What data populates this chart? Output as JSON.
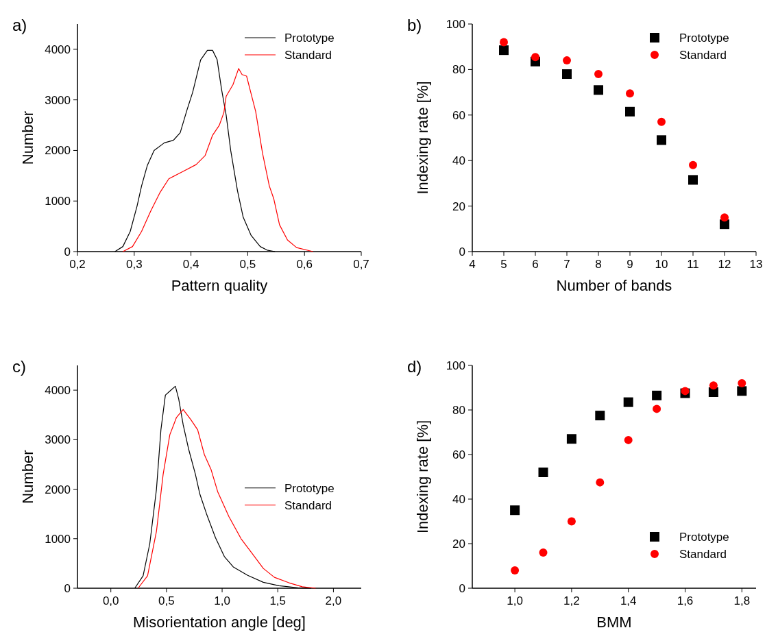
{
  "chart_data": [
    {
      "type": "line",
      "title": "a)",
      "xlabel": "Pattern quality",
      "ylabel": "Number",
      "xlim": [
        0.2,
        0.7
      ],
      "xticks": [
        {
          "value": 0.2,
          "label": "0,2"
        },
        {
          "value": 0.3,
          "label": "0,3"
        },
        {
          "value": 0.4,
          "label": "0,4"
        },
        {
          "value": 0.5,
          "label": "0,5"
        },
        {
          "value": 0.6,
          "label": "0,6"
        },
        {
          "value": 0.7,
          "label": "0,7"
        }
      ],
      "ylim": [
        0,
        4500
      ],
      "yticks": [
        0,
        1000,
        2000,
        3000,
        4000
      ],
      "legend": "top right",
      "grid": false,
      "series": [
        {
          "name": "Prototype",
          "color": "#000000",
          "x": [
            0.266,
            0.28,
            0.293,
            0.305,
            0.313,
            0.323,
            0.335,
            0.353,
            0.369,
            0.381,
            0.393,
            0.403,
            0.417,
            0.429,
            0.438,
            0.446,
            0.454,
            0.462,
            0.47,
            0.482,
            0.492,
            0.506,
            0.522,
            0.534,
            0.548
          ],
          "values": [
            0,
            100,
            400,
            900,
            1300,
            1700,
            2000,
            2150,
            2200,
            2350,
            2800,
            3150,
            3790,
            3980,
            3980,
            3800,
            3200,
            2700,
            2000,
            1200,
            680,
            320,
            100,
            30,
            0
          ]
        },
        {
          "name": "Standard",
          "color": "#ff0000",
          "x": [
            0.28,
            0.297,
            0.313,
            0.329,
            0.345,
            0.361,
            0.385,
            0.409,
            0.425,
            0.438,
            0.45,
            0.458,
            0.462,
            0.474,
            0.484,
            0.49,
            0.498,
            0.506,
            0.514,
            0.526,
            0.538,
            0.546,
            0.556,
            0.57,
            0.586,
            0.615
          ],
          "values": [
            0,
            100,
            400,
            800,
            1160,
            1440,
            1580,
            1720,
            1900,
            2300,
            2500,
            2750,
            3070,
            3300,
            3620,
            3500,
            3470,
            3120,
            2770,
            1950,
            1300,
            1040,
            530,
            230,
            80,
            0
          ]
        }
      ]
    },
    {
      "type": "scatter",
      "title": "b)",
      "xlabel": "Number of bands",
      "ylabel": "Indexing rate [%]",
      "xlim": [
        4,
        13
      ],
      "xticks": [
        4,
        5,
        6,
        7,
        8,
        9,
        10,
        11,
        12,
        13
      ],
      "ylim": [
        0,
        100
      ],
      "yticks": [
        0,
        20,
        40,
        60,
        80,
        100
      ],
      "legend": "top right",
      "grid": false,
      "x": [
        5,
        6,
        7,
        8,
        9,
        10,
        11,
        12
      ],
      "series": [
        {
          "name": "Prototype",
          "color": "#000000",
          "marker": "square",
          "values": [
            88.5,
            83.5,
            78,
            71,
            61.5,
            49,
            31.5,
            12
          ]
        },
        {
          "name": "Standard",
          "color": "#ff0000",
          "marker": "circle",
          "values": [
            92,
            85.5,
            84,
            78,
            69.5,
            57,
            38,
            15
          ]
        }
      ]
    },
    {
      "type": "line",
      "title": "c)",
      "xlabel": "Misorientation angle [deg]",
      "ylabel": "Number",
      "xlim": [
        -0.3,
        2.25
      ],
      "xticks": [
        {
          "value": 0,
          "label": "0,0"
        },
        {
          "value": 0.5,
          "label": "0,5"
        },
        {
          "value": 1,
          "label": "1,0"
        },
        {
          "value": 1.5,
          "label": "1,5"
        },
        {
          "value": 2,
          "label": "2,0"
        }
      ],
      "ylim": [
        0,
        4500
      ],
      "yticks": [
        0,
        1000,
        2000,
        3000,
        4000
      ],
      "legend": "right",
      "grid": false,
      "series": [
        {
          "name": "Prototype",
          "color": "#000000",
          "x": [
            0.215,
            0.29,
            0.35,
            0.41,
            0.45,
            0.49,
            0.53,
            0.58,
            0.61,
            0.65,
            0.7,
            0.76,
            0.8,
            0.86,
            0.94,
            1.02,
            1.1,
            1.23,
            1.37,
            1.51,
            1.68,
            1.8
          ],
          "values": [
            0,
            250,
            900,
            2000,
            3200,
            3900,
            3980,
            4080,
            3820,
            3300,
            2800,
            2300,
            1900,
            1500,
            1020,
            640,
            430,
            260,
            120,
            50,
            10,
            0
          ]
        },
        {
          "name": "Standard",
          "color": "#ff0000",
          "x": [
            0.245,
            0.33,
            0.41,
            0.47,
            0.53,
            0.59,
            0.65,
            0.72,
            0.78,
            0.84,
            0.9,
            0.96,
            1.06,
            1.17,
            1.27,
            1.37,
            1.47,
            1.6,
            1.72,
            1.84
          ],
          "values": [
            0,
            250,
            1150,
            2300,
            3100,
            3450,
            3610,
            3400,
            3200,
            2700,
            2400,
            1950,
            1450,
            1000,
            700,
            400,
            220,
            110,
            30,
            0
          ]
        }
      ]
    },
    {
      "type": "scatter",
      "title": "d)",
      "xlabel": "BMM",
      "ylabel": "Indexing rate [%]",
      "xlim": [
        0.85,
        1.85
      ],
      "xticks": [
        {
          "value": 1,
          "label": "1,0"
        },
        {
          "value": 1.2,
          "label": "1,2"
        },
        {
          "value": 1.4,
          "label": "1,4"
        },
        {
          "value": 1.6,
          "label": "1,6"
        },
        {
          "value": 1.8,
          "label": "1,8"
        }
      ],
      "ylim": [
        0,
        100
      ],
      "yticks": [
        0,
        20,
        40,
        60,
        80,
        100
      ],
      "legend": "bottom right",
      "grid": false,
      "x": [
        1,
        1.1,
        1.2,
        1.3,
        1.4,
        1.5,
        1.6,
        1.7,
        1.8
      ],
      "series": [
        {
          "name": "Prototype",
          "color": "#000000",
          "marker": "square",
          "values": [
            35,
            52,
            67,
            77.5,
            83.5,
            86.5,
            87.5,
            88,
            88.5
          ]
        },
        {
          "name": "Standard",
          "color": "#ff0000",
          "marker": "circle",
          "values": [
            8,
            16,
            30,
            47.5,
            66.5,
            80.5,
            88.5,
            91,
            92
          ]
        }
      ]
    }
  ]
}
